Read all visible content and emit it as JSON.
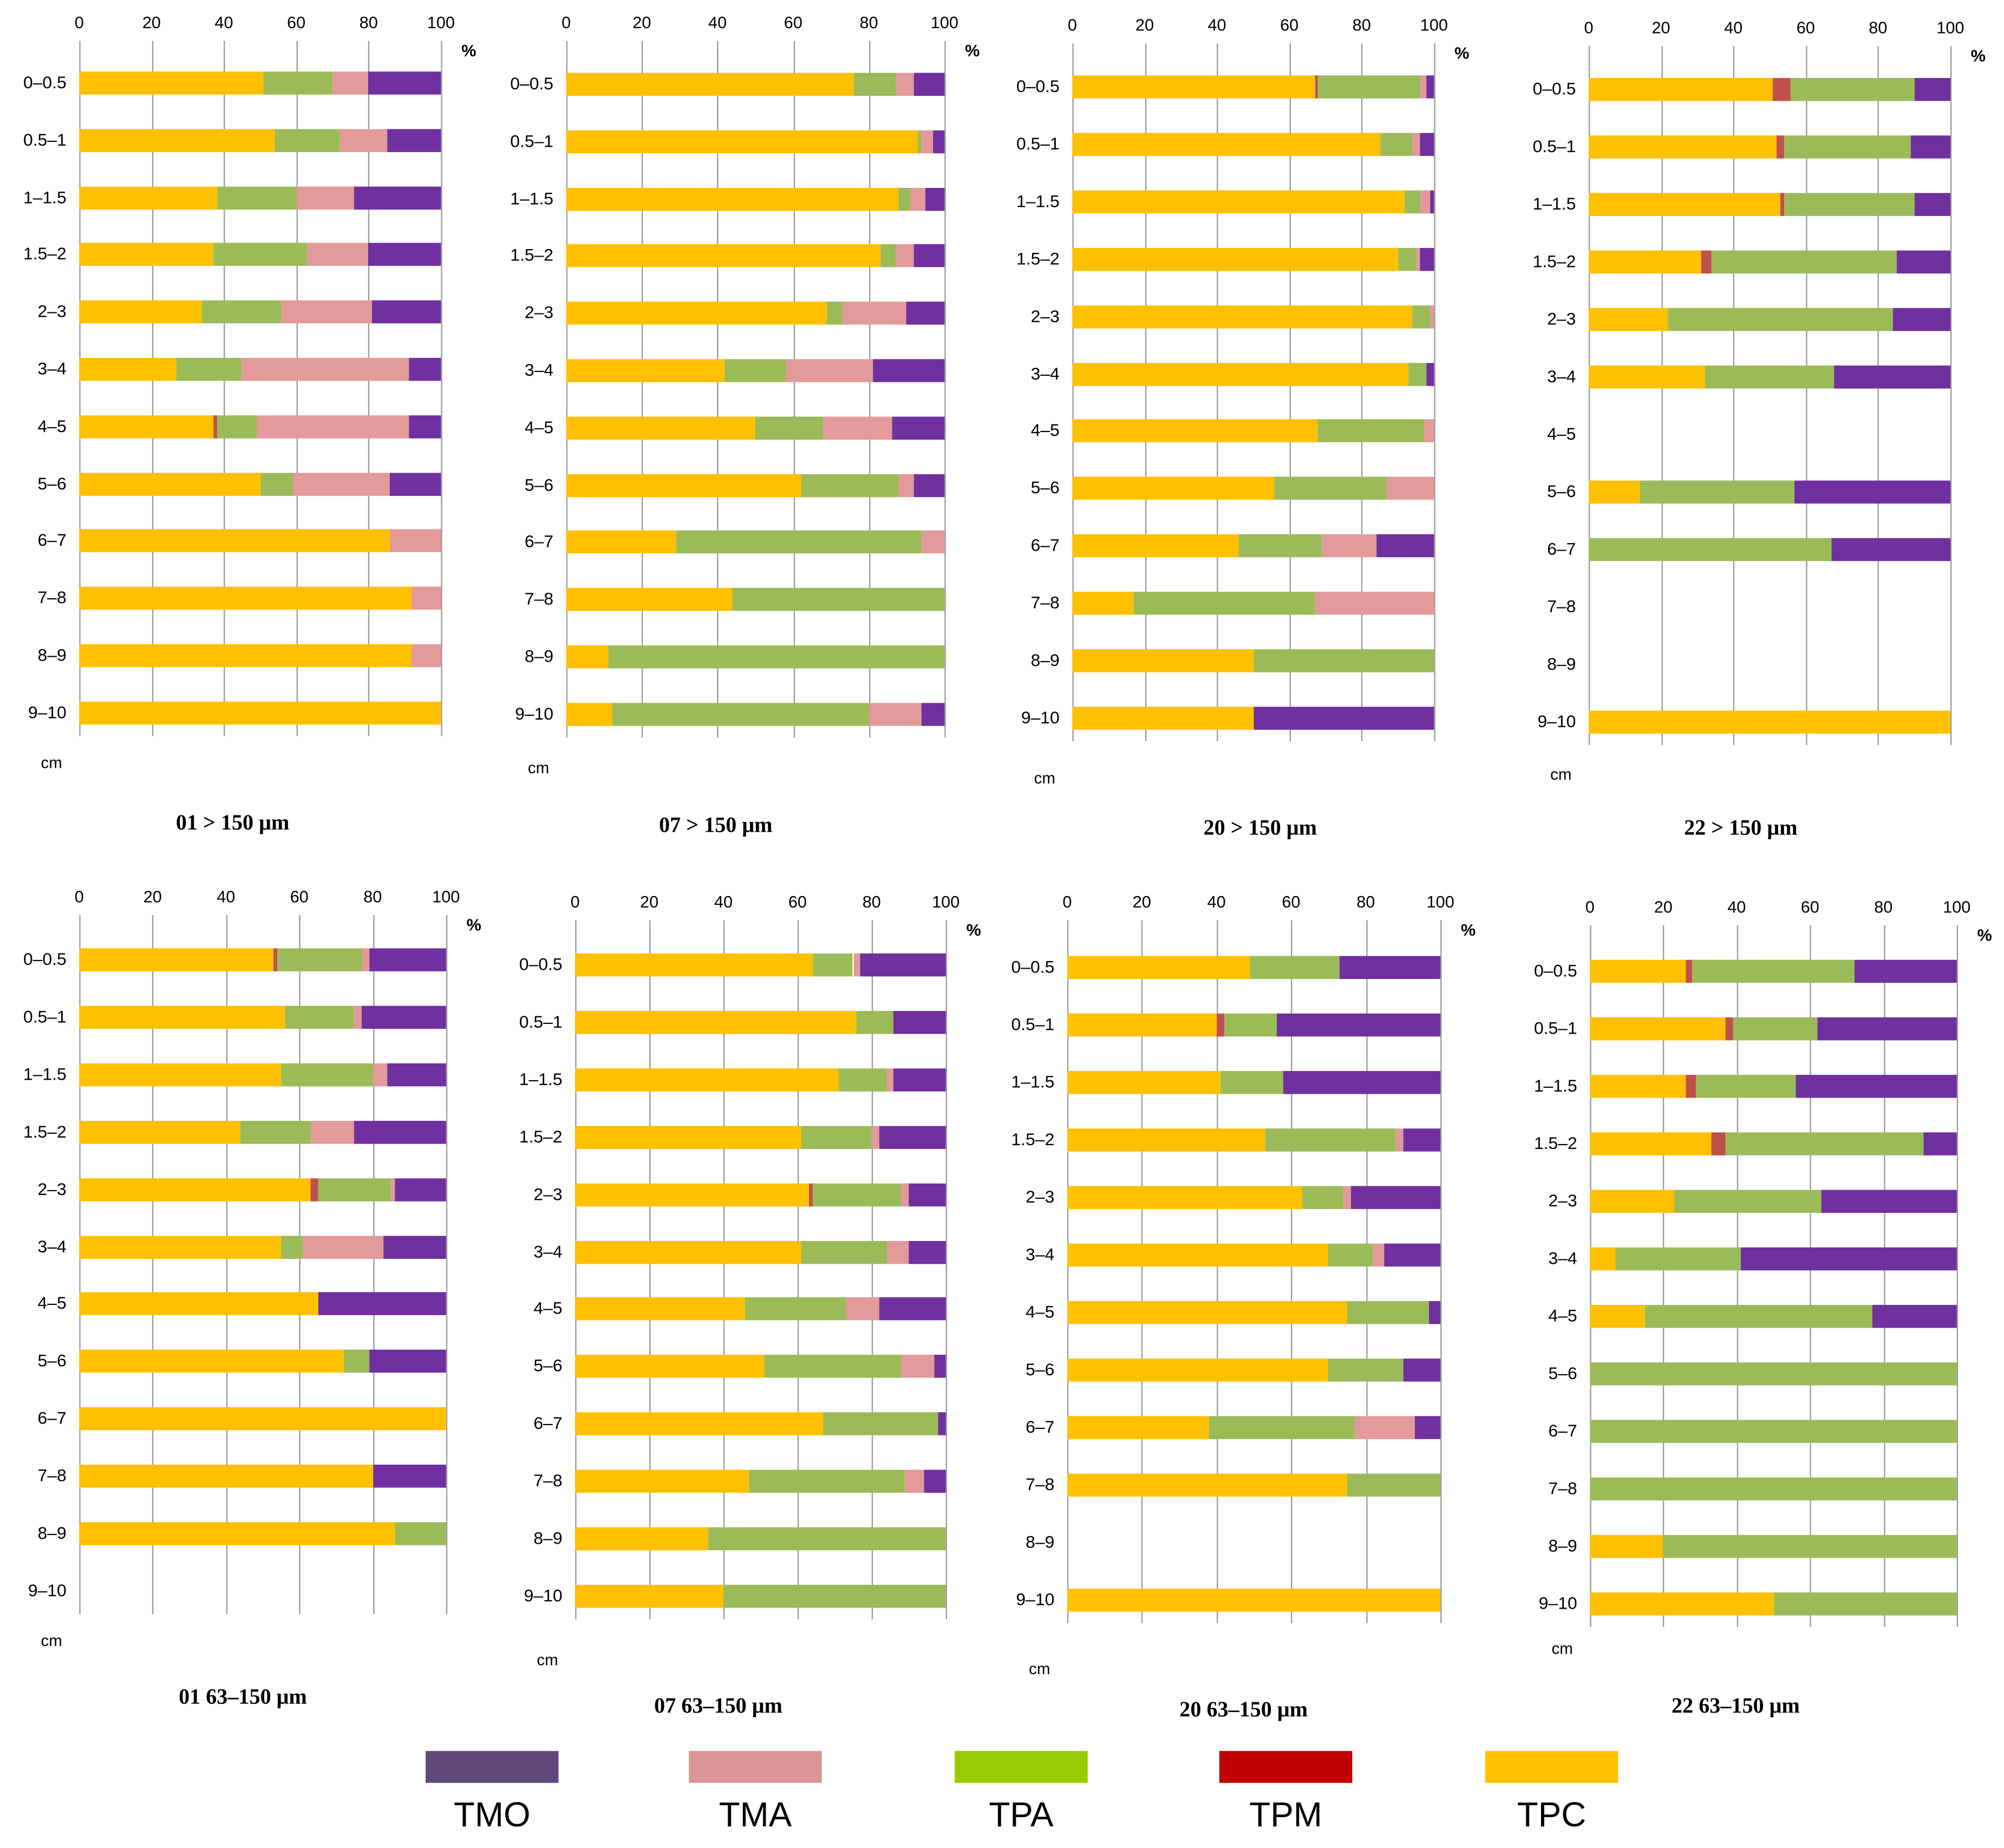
{
  "series_colors": {
    "TMO": "#7030a0",
    "TMA": "#e39a9a",
    "TPA": "#9bbb59",
    "TPM": "#c0504d",
    "TPC": "#ffc000"
  },
  "legend": [
    {
      "label": "TMO",
      "color": "#604a7b"
    },
    {
      "label": "TMA",
      "color": "#d99694"
    },
    {
      "label": "TPA",
      "color": "#99cc00"
    },
    {
      "label": "TPM",
      "color": "#c00000"
    },
    {
      "label": "TPC",
      "color": "#ffc000"
    }
  ],
  "chart_data": [
    {
      "type": "bar",
      "orientation": "horizontal",
      "stacked": true,
      "title": "01  > 150 μm",
      "xlabel": "%",
      "ylabel": "cm",
      "xlim": [
        0,
        100
      ],
      "xticks": [
        "0",
        "20",
        "40",
        "60",
        "80",
        "100"
      ],
      "categories": [
        "0–0.5",
        "0.5–1",
        "1–1.5",
        "1.5–2",
        "2–3",
        "3–4",
        "4–5",
        "5–6",
        "6–7",
        "7–8",
        "8–9",
        "9–10"
      ],
      "series": [
        {
          "name": "TPC",
          "values": [
            51,
            54,
            38,
            37,
            34,
            27,
            37,
            50,
            86,
            92,
            92,
            100
          ]
        },
        {
          "name": "TPM",
          "values": [
            0,
            0,
            0,
            0,
            0,
            0,
            1,
            0,
            0,
            0,
            0,
            0
          ]
        },
        {
          "name": "TPA",
          "values": [
            19,
            18,
            22,
            26,
            22,
            18,
            11,
            9,
            0,
            0,
            0,
            0
          ]
        },
        {
          "name": "TMA",
          "values": [
            10,
            13,
            16,
            17,
            25,
            46,
            42,
            27,
            14,
            8,
            8,
            0
          ]
        },
        {
          "name": "TMO",
          "values": [
            20,
            15,
            24,
            20,
            19,
            9,
            9,
            14,
            0,
            0,
            0,
            0
          ]
        }
      ]
    },
    {
      "type": "bar",
      "orientation": "horizontal",
      "stacked": true,
      "title": "07  > 150 μm",
      "xlabel": "%",
      "ylabel": "cm",
      "xlim": [
        0,
        100
      ],
      "xticks": [
        "0",
        "20",
        "40",
        "60",
        "80",
        "100"
      ],
      "categories": [
        "0–0.5",
        "0.5–1",
        "1–1.5",
        "1.5–2",
        "2–3",
        "3–4",
        "4–5",
        "5–6",
        "6–7",
        "7–8",
        "8–9",
        "9–10"
      ],
      "series": [
        {
          "name": "TPC",
          "values": [
            76,
            93,
            88,
            83,
            69,
            42,
            50,
            62,
            29,
            44,
            11,
            12
          ]
        },
        {
          "name": "TPM",
          "values": [
            0,
            0,
            0,
            0,
            0,
            0,
            0,
            0,
            0,
            0,
            0,
            0
          ]
        },
        {
          "name": "TPA",
          "values": [
            11,
            1,
            3,
            4,
            4,
            16,
            18,
            26,
            65,
            56,
            89,
            68
          ]
        },
        {
          "name": "TMA",
          "values": [
            5,
            3,
            4,
            5,
            17,
            23,
            18,
            4,
            6,
            0,
            0,
            14
          ]
        },
        {
          "name": "TMO",
          "values": [
            8,
            3,
            5,
            8,
            10,
            19,
            14,
            8,
            0,
            0,
            0,
            6
          ]
        }
      ]
    },
    {
      "type": "bar",
      "orientation": "horizontal",
      "stacked": true,
      "title": "20  > 150 μm",
      "xlabel": "%",
      "ylabel": "cm",
      "xlim": [
        0,
        100
      ],
      "xticks": [
        "0",
        "20",
        "40",
        "60",
        "80",
        "100"
      ],
      "categories": [
        "0–0.5",
        "0.5–1",
        "1–1.5",
        "1.5–2",
        "2–3",
        "3–4",
        "4–5",
        "5–6",
        "6–7",
        "7–8",
        "8–9",
        "9–10"
      ],
      "series": [
        {
          "name": "TPC",
          "values": [
            67,
            85,
            92,
            90,
            94,
            93,
            68,
            56,
            46,
            17,
            50,
            50
          ]
        },
        {
          "name": "TPM",
          "values": [
            1,
            0,
            0,
            0,
            0,
            0,
            0,
            0,
            0,
            0,
            0,
            0
          ]
        },
        {
          "name": "TPA",
          "values": [
            28,
            9,
            4,
            5,
            5,
            5,
            29,
            31,
            23,
            50,
            50,
            0
          ]
        },
        {
          "name": "TMA",
          "values": [
            2,
            2,
            3,
            1,
            1,
            0,
            3,
            13,
            15,
            33,
            0,
            0
          ]
        },
        {
          "name": "TMO",
          "values": [
            2,
            4,
            1,
            4,
            0,
            2,
            0,
            0,
            16,
            0,
            0,
            50
          ]
        }
      ]
    },
    {
      "type": "bar",
      "orientation": "horizontal",
      "stacked": true,
      "title": "22  > 150 μm",
      "xlabel": "%",
      "ylabel": "cm",
      "xlim": [
        0,
        100
      ],
      "xticks": [
        "0",
        "20",
        "40",
        "60",
        "80",
        "100"
      ],
      "categories": [
        "0–0.5",
        "0.5–1",
        "1–1.5",
        "1.5–2",
        "2–3",
        "3–4",
        "4–5",
        "5–6",
        "6–7",
        "7–8",
        "8–9",
        "9–10"
      ],
      "series": [
        {
          "name": "TPC",
          "values": [
            51,
            52,
            53,
            31,
            22,
            32,
            0,
            14,
            0,
            0,
            0,
            100
          ]
        },
        {
          "name": "TPM",
          "values": [
            5,
            2,
            1,
            3,
            0,
            0,
            0,
            0,
            0,
            0,
            0,
            0
          ]
        },
        {
          "name": "TPA",
          "values": [
            34,
            35,
            36,
            51,
            62,
            36,
            0,
            43,
            67,
            0,
            0,
            0
          ]
        },
        {
          "name": "TMA",
          "values": [
            0,
            0,
            0,
            0,
            0,
            0,
            0,
            0,
            0,
            0,
            0,
            0
          ]
        },
        {
          "name": "TMO",
          "values": [
            10,
            11,
            10,
            15,
            16,
            32,
            0,
            43,
            33,
            0,
            0,
            0
          ]
        }
      ]
    },
    {
      "type": "bar",
      "orientation": "horizontal",
      "stacked": true,
      "title": "01  63–150 μm",
      "xlabel": "%",
      "ylabel": "cm",
      "xlim": [
        0,
        100
      ],
      "xticks": [
        "0",
        "20",
        "40",
        "60",
        "80",
        "100"
      ],
      "categories": [
        "0–0.5",
        "0.5–1",
        "1–1.5",
        "1.5–2",
        "2–3",
        "3–4",
        "4–5",
        "5–6",
        "6–7",
        "7–8",
        "8–9",
        "9–10"
      ],
      "series": [
        {
          "name": "TPC",
          "values": [
            53,
            56,
            55,
            44,
            63,
            55,
            65,
            72,
            100,
            80,
            86,
            0
          ]
        },
        {
          "name": "TPM",
          "values": [
            1,
            0,
            0,
            0,
            2,
            0,
            0,
            0,
            0,
            0,
            0,
            0
          ]
        },
        {
          "name": "TPA",
          "values": [
            23,
            19,
            25,
            19,
            20,
            6,
            0,
            7,
            0,
            0,
            14,
            0
          ]
        },
        {
          "name": "TMA",
          "values": [
            2,
            2,
            4,
            12,
            1,
            22,
            0,
            0,
            0,
            0,
            0,
            0
          ]
        },
        {
          "name": "TMO",
          "values": [
            21,
            23,
            16,
            25,
            14,
            17,
            35,
            21,
            0,
            20,
            0,
            0
          ]
        }
      ]
    },
    {
      "type": "bar",
      "orientation": "horizontal",
      "stacked": true,
      "title": "07  63–150 μm",
      "xlabel": "%",
      "ylabel": "cm",
      "xlim": [
        0,
        100
      ],
      "xticks": [
        "0",
        "20",
        "40",
        "60",
        "80",
        "100"
      ],
      "categories": [
        "0–0.5",
        "0.5–1",
        "1–1.5",
        "1.5–2",
        "2–3",
        "3–4",
        "4–5",
        "5–6",
        "6–7",
        "7–8",
        "8–9",
        "9–10"
      ],
      "series": [
        {
          "name": "TPC",
          "values": [
            64,
            76,
            71,
            61,
            63,
            61,
            46,
            51,
            67,
            47,
            36,
            40
          ]
        },
        {
          "name": "TPM",
          "values": [
            0,
            0,
            0,
            0,
            1,
            0,
            0,
            0,
            0,
            0,
            0,
            0
          ]
        },
        {
          "name": "TPA",
          "values": [
            11,
            10,
            13,
            19,
            24,
            23,
            27,
            37,
            31,
            42,
            64,
            60
          ]
        },
        {
          "name": "TMA",
          "values": [
            2,
            0,
            2,
            2,
            2,
            6,
            9,
            9,
            0,
            5,
            0,
            0
          ]
        },
        {
          "name": "TMO",
          "values": [
            23,
            14,
            14,
            18,
            10,
            10,
            18,
            3,
            2,
            6,
            0,
            0
          ]
        }
      ]
    },
    {
      "type": "bar",
      "orientation": "horizontal",
      "stacked": true,
      "title": "20  63–150 μm",
      "xlabel": "%",
      "ylabel": "cm",
      "xlim": [
        0,
        100
      ],
      "xticks": [
        "0",
        "20",
        "40",
        "60",
        "80",
        "100"
      ],
      "categories": [
        "0–0.5",
        "0.5–1",
        "1–1.5",
        "1.5–2",
        "2–3",
        "3–4",
        "4–5",
        "5–6",
        "6–7",
        "7–8",
        "8–9",
        "9–10"
      ],
      "series": [
        {
          "name": "TPC",
          "values": [
            49,
            40,
            41,
            53,
            63,
            70,
            75,
            70,
            38,
            75,
            0,
            100
          ]
        },
        {
          "name": "TPM",
          "values": [
            0,
            2,
            0,
            0,
            0,
            0,
            0,
            0,
            0,
            0,
            0,
            0
          ]
        },
        {
          "name": "TPA",
          "values": [
            24,
            14,
            17,
            35,
            11,
            12,
            22,
            20,
            39,
            25,
            0,
            0
          ]
        },
        {
          "name": "TMA",
          "values": [
            0,
            0,
            0,
            2,
            2,
            3,
            0,
            0,
            16,
            0,
            0,
            0
          ]
        },
        {
          "name": "TMO",
          "values": [
            27,
            44,
            42,
            10,
            24,
            15,
            3,
            10,
            7,
            0,
            0,
            0
          ]
        }
      ]
    },
    {
      "type": "bar",
      "orientation": "horizontal",
      "stacked": true,
      "title": "22  63–150 μm",
      "xlabel": "%",
      "ylabel": "cm",
      "xlim": [
        0,
        100
      ],
      "xticks": [
        "0",
        "20",
        "40",
        "60",
        "80",
        "100"
      ],
      "categories": [
        "0–0.5",
        "0.5–1",
        "1–1.5",
        "1.5–2",
        "2–3",
        "3–4",
        "4–5",
        "5–6",
        "6–7",
        "7–8",
        "8–9",
        "9–10"
      ],
      "series": [
        {
          "name": "TPC",
          "values": [
            26,
            37,
            26,
            33,
            23,
            7,
            15,
            0,
            0,
            0,
            20,
            50
          ]
        },
        {
          "name": "TPM",
          "values": [
            2,
            2,
            3,
            4,
            0,
            0,
            0,
            0,
            0,
            0,
            0,
            0
          ]
        },
        {
          "name": "TPA",
          "values": [
            44,
            23,
            27,
            54,
            40,
            34,
            62,
            100,
            100,
            100,
            80,
            50
          ]
        },
        {
          "name": "TMA",
          "values": [
            0,
            0,
            0,
            0,
            0,
            0,
            0,
            0,
            0,
            0,
            0,
            0
          ]
        },
        {
          "name": "TMO",
          "values": [
            28,
            38,
            44,
            9,
            37,
            59,
            23,
            0,
            0,
            0,
            0,
            0
          ]
        }
      ]
    }
  ]
}
